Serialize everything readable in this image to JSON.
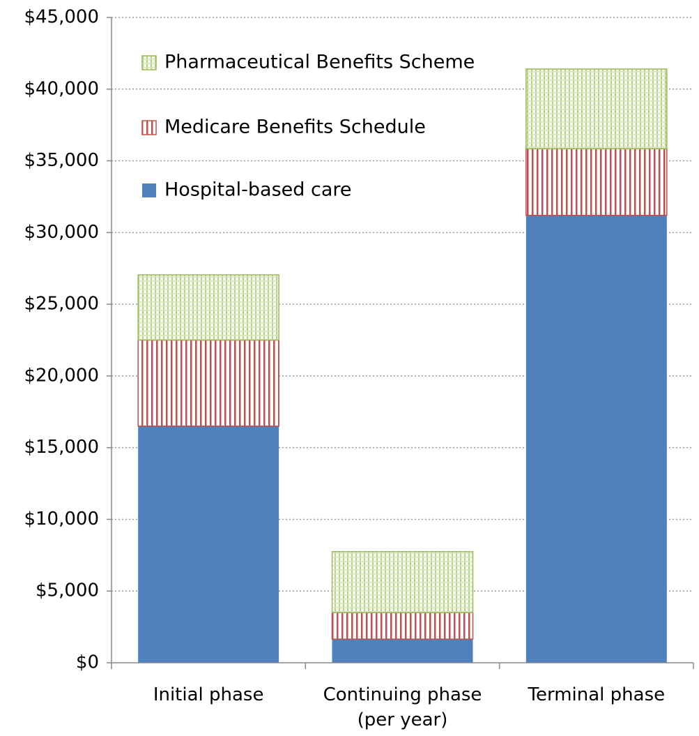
{
  "chart_data": {
    "type": "stacked_bar",
    "categories": [
      "Initial phase",
      "Continuing phase (per year)",
      "Terminal phase"
    ],
    "series": [
      {
        "name": "Hospital-based care",
        "color": "#4f81bd",
        "values": [
          16500,
          1650,
          31200
        ]
      },
      {
        "name": "Medicare Benefits Schedule",
        "color": "#c0504d",
        "values": [
          6000,
          1850,
          4650
        ]
      },
      {
        "name": "Pharmaceutical Benefits Scheme",
        "color": "#9bbb59",
        "values": [
          4550,
          4250,
          5550
        ]
      }
    ],
    "ylim": [
      0,
      45000
    ],
    "yticks": [
      {
        "value": 0,
        "label": "$0"
      },
      {
        "value": 5000,
        "label": "$5,000"
      },
      {
        "value": 10000,
        "label": "$10,000"
      },
      {
        "value": 15000,
        "label": "$15,000"
      },
      {
        "value": 20000,
        "label": "$20,000"
      },
      {
        "value": 25000,
        "label": "$25,000"
      },
      {
        "value": 30000,
        "label": "$30,000"
      },
      {
        "value": 35000,
        "label": "$35,000"
      },
      {
        "value": 40000,
        "label": "$40,000"
      },
      {
        "value": 45000,
        "label": "$45,000"
      }
    ],
    "grid": true,
    "legend": "upper left"
  }
}
